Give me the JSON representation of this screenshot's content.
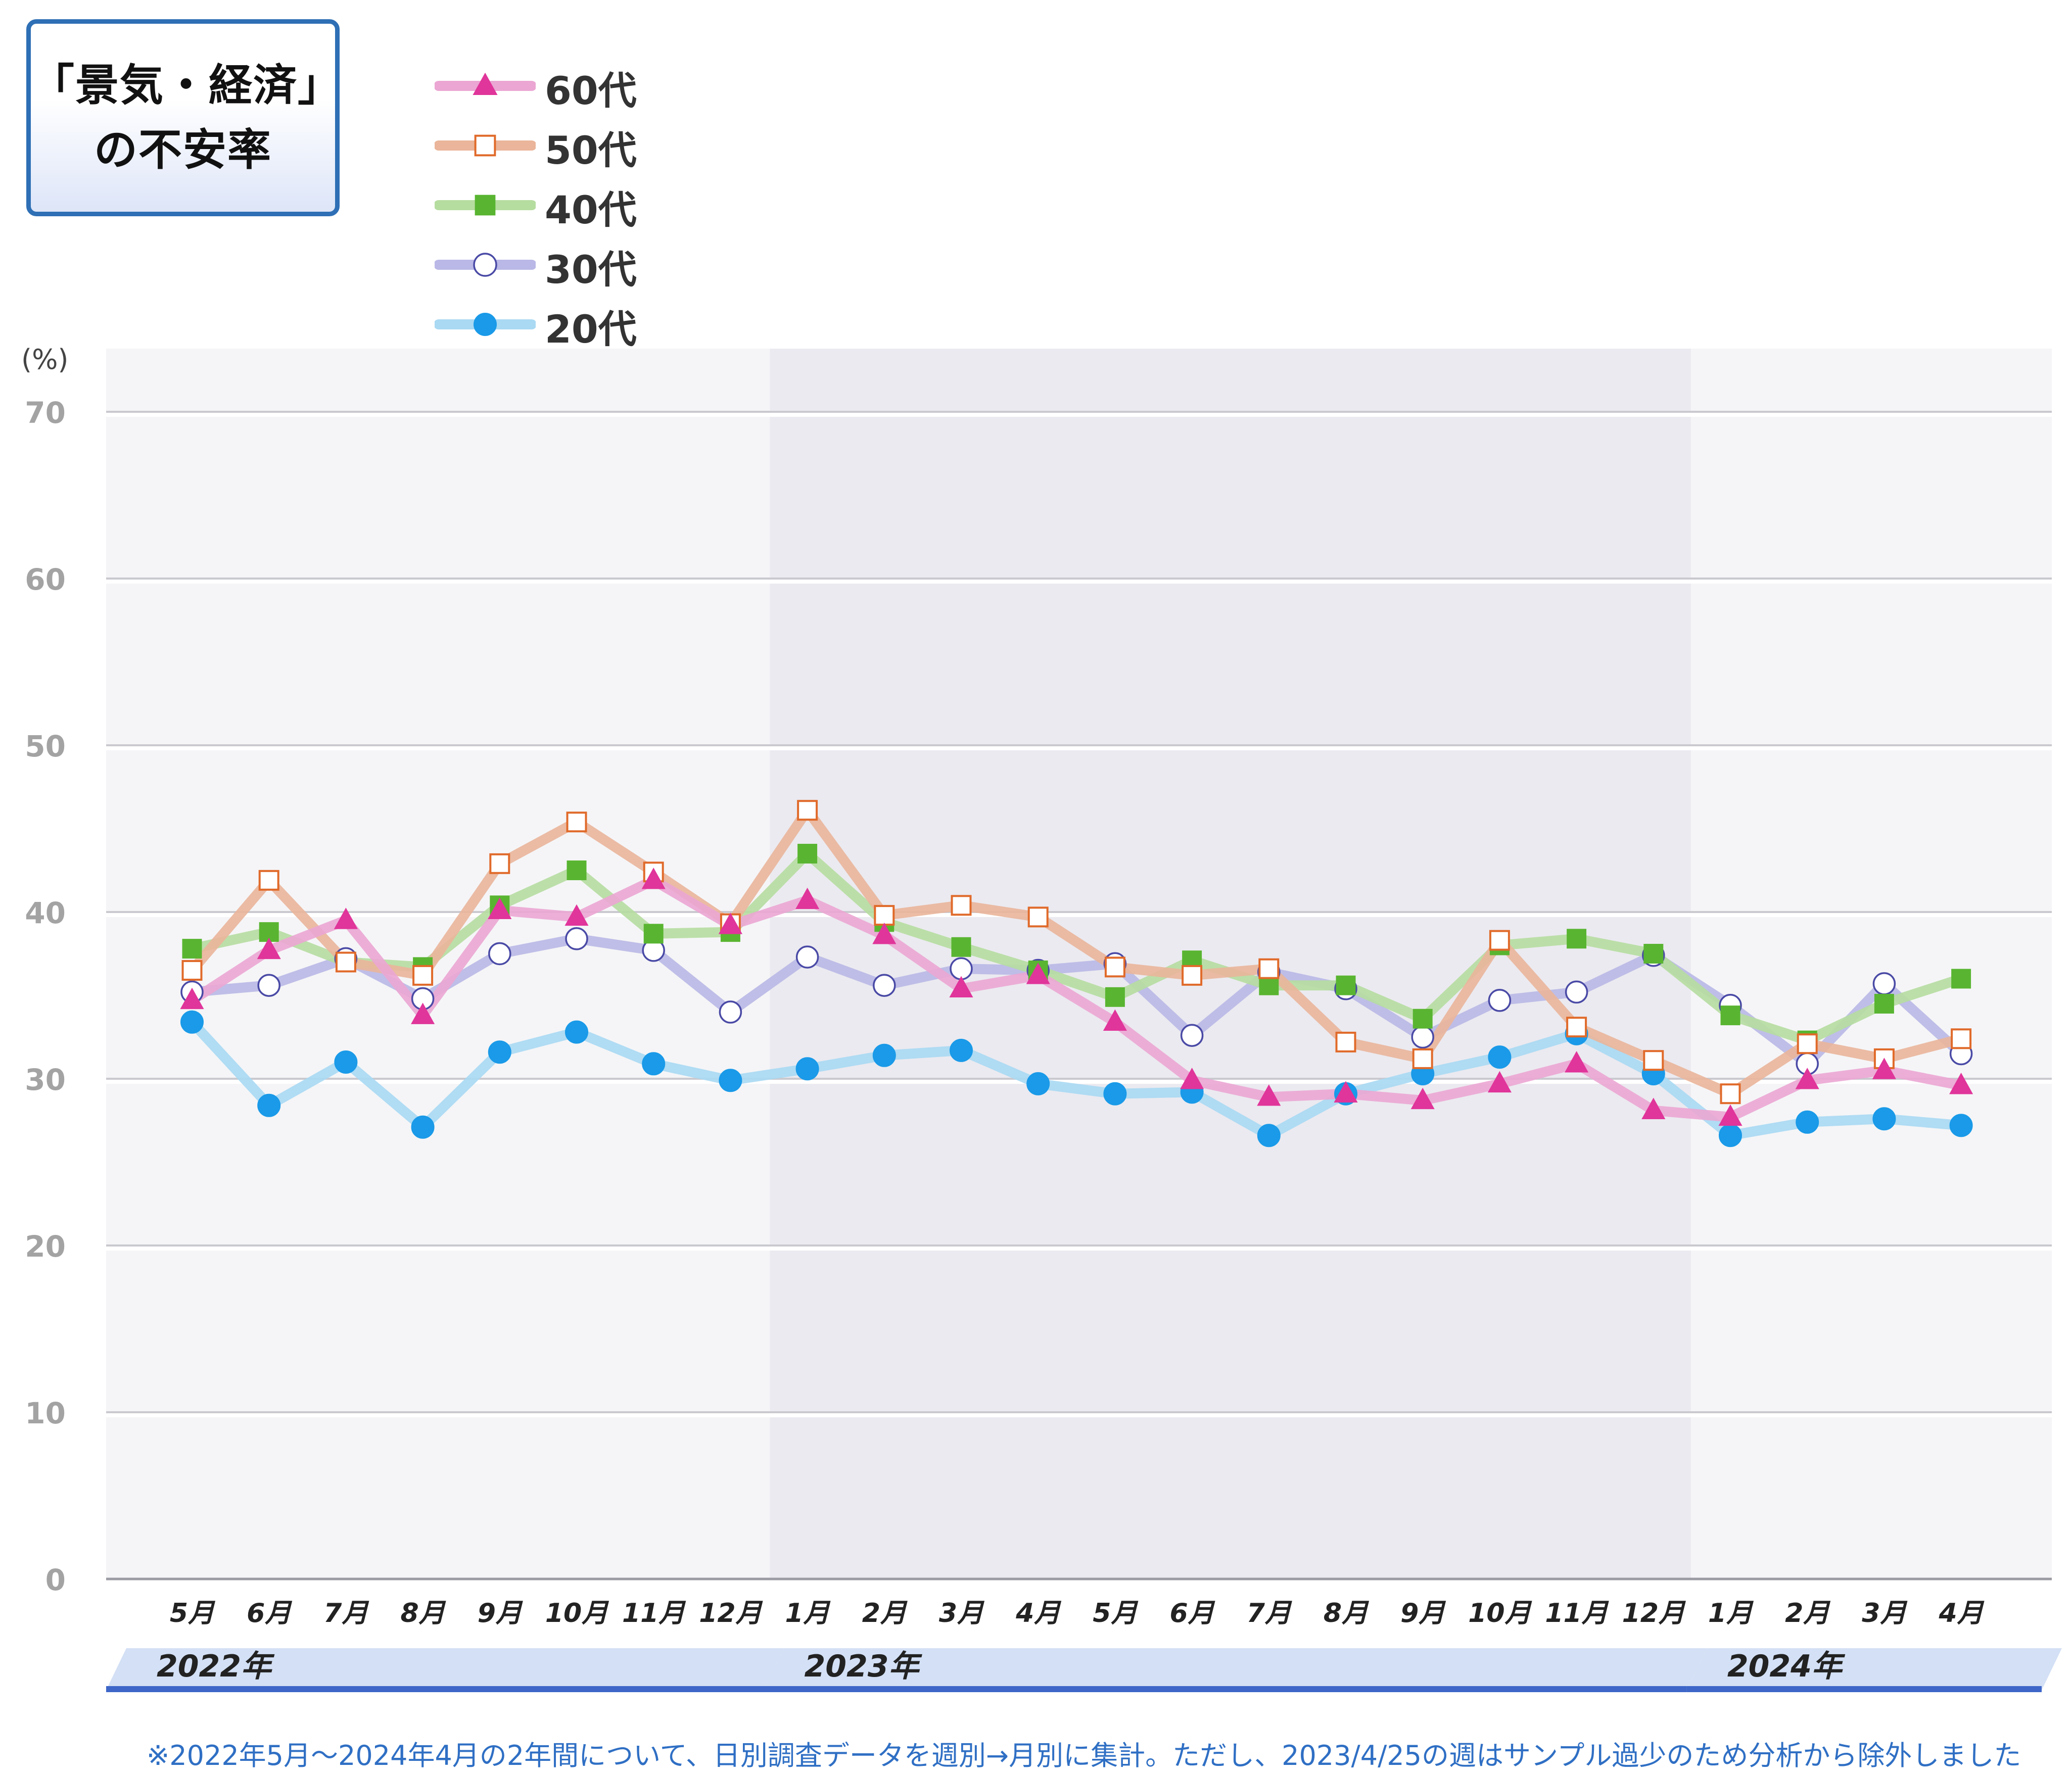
{
  "title_lines": [
    "「景気・経済」",
    "の不安率"
  ],
  "unit_label": "(%)",
  "footnote": "※2022年5月～2024年4月の2年間について、日別調査データを週別→月別に集計。ただし、2023/4/25の週はサンプル過少のため分析から除外しました",
  "chart_data": {
    "type": "line",
    "title": "「景気・経済」の不安率",
    "ylabel": "(%)",
    "ylim": [
      0,
      70
    ],
    "yticks": [
      0,
      10,
      20,
      30,
      40,
      50,
      60,
      70
    ],
    "grid": true,
    "legend_position": "top-left",
    "categories": [
      "5月",
      "6月",
      "7月",
      "8月",
      "9月",
      "10月",
      "11月",
      "12月",
      "1月",
      "2月",
      "3月",
      "4月",
      "5月",
      "6月",
      "7月",
      "8月",
      "9月",
      "10月",
      "11月",
      "12月",
      "1月",
      "2月",
      "3月",
      "4月"
    ],
    "year_groups": [
      {
        "label": "2022年",
        "start": 0,
        "end": 7
      },
      {
        "label": "2023年",
        "start": 8,
        "end": 19
      },
      {
        "label": "2024年",
        "start": 20,
        "end": 23
      }
    ],
    "series": [
      {
        "name": "60代",
        "marker": "triangle",
        "line_color": "#eba6d3",
        "marker_fill": "#e0359a",
        "marker_stroke": "#e0359a",
        "values": [
          34.7,
          37.7,
          39.5,
          33.8,
          40.1,
          39.7,
          41.9,
          39.2,
          40.7,
          38.6,
          35.4,
          36.2,
          33.4,
          29.9,
          28.9,
          29.1,
          28.7,
          29.7,
          30.9,
          28.1,
          27.7,
          29.9,
          30.5,
          29.6
        ]
      },
      {
        "name": "50代",
        "marker": "square-open",
        "line_color": "#eab59a",
        "marker_fill": "#ffffff",
        "marker_stroke": "#e06a2a",
        "values": [
          36.5,
          41.9,
          37.0,
          36.2,
          42.9,
          45.4,
          42.4,
          39.3,
          46.1,
          39.8,
          40.4,
          39.7,
          36.7,
          36.2,
          36.6,
          32.2,
          31.2,
          38.3,
          33.1,
          31.1,
          29.1,
          32.1,
          31.2,
          32.4
        ]
      },
      {
        "name": "40代",
        "marker": "square",
        "line_color": "#b6dda0",
        "marker_fill": "#59b531",
        "marker_stroke": "#59b531",
        "values": [
          37.8,
          38.8,
          37.0,
          36.7,
          40.4,
          42.5,
          38.7,
          38.8,
          43.5,
          39.4,
          37.9,
          36.5,
          34.9,
          37.1,
          35.6,
          35.6,
          33.6,
          38.0,
          38.4,
          37.5,
          33.8,
          32.3,
          34.5,
          36.0
        ]
      },
      {
        "name": "30代",
        "marker": "circle-open",
        "line_color": "#b9b8e6",
        "marker_fill": "#ffffff",
        "marker_stroke": "#4a4aa6",
        "values": [
          35.2,
          35.6,
          37.2,
          34.8,
          37.5,
          38.4,
          37.7,
          34.0,
          37.3,
          35.6,
          36.6,
          36.5,
          36.9,
          32.6,
          36.4,
          35.4,
          32.5,
          34.7,
          35.2,
          37.4,
          34.4,
          30.9,
          35.7,
          31.5
        ]
      },
      {
        "name": "20代",
        "marker": "circle",
        "line_color": "#a9d9f3",
        "marker_fill": "#1a9ae8",
        "marker_stroke": "#1a9ae8",
        "values": [
          33.4,
          28.4,
          31.0,
          27.1,
          31.6,
          32.8,
          30.9,
          29.9,
          30.6,
          31.4,
          31.7,
          29.7,
          29.1,
          29.2,
          26.6,
          29.1,
          30.3,
          31.3,
          32.7,
          30.3,
          26.6,
          27.4,
          27.6,
          27.2
        ]
      }
    ]
  }
}
